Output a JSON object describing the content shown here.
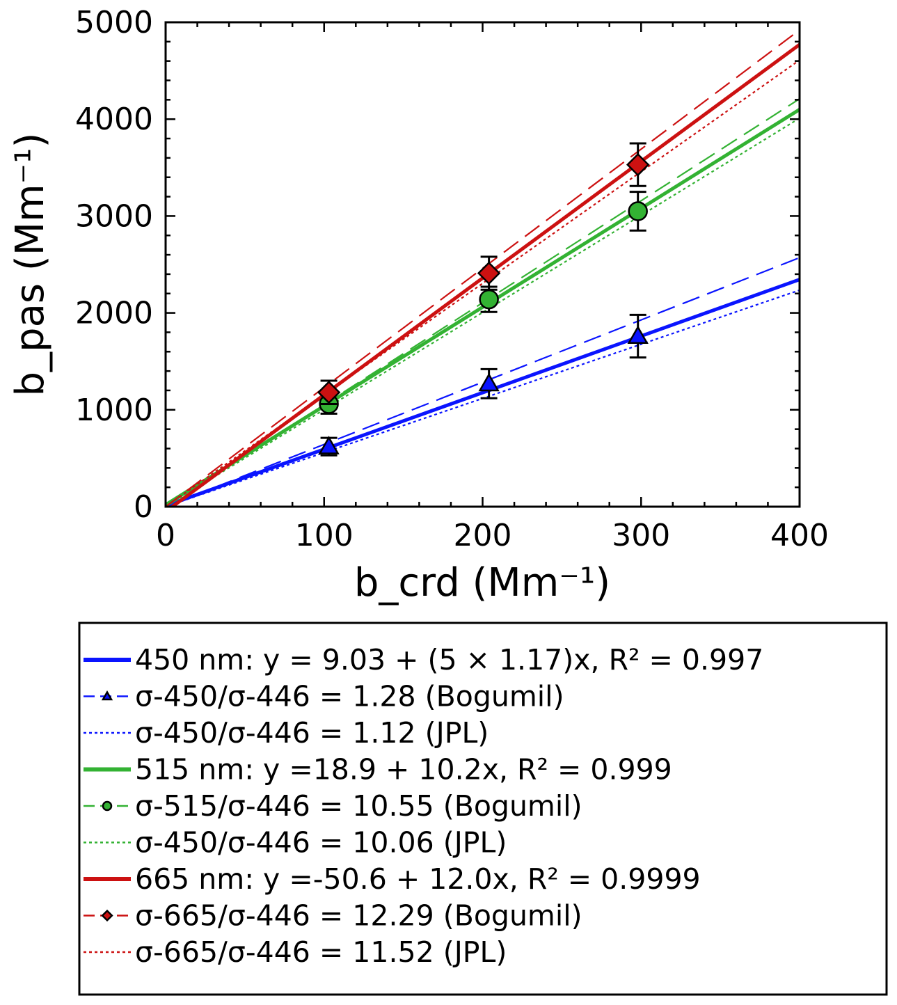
{
  "chart_data": {
    "type": "scatter",
    "xlabel": "b_crd (Mm⁻¹)",
    "ylabel": "b_pas (Mm⁻¹)",
    "xlim": [
      0,
      400
    ],
    "ylim": [
      0,
      5000
    ],
    "xticks": [
      "0",
      "100",
      "200",
      "300",
      "400"
    ],
    "yticks": [
      "0",
      "1000",
      "2000",
      "3000",
      "4000",
      "5000"
    ],
    "grid": false,
    "legend_position": "below plot",
    "colors": {
      "blue": "#0a14ff",
      "green": "#33b233",
      "red": "#cc1111"
    },
    "series": [
      {
        "name": "450 nm: y = 9.03 + (5 × 1.17)x, R² = 0.997",
        "color": "#0a14ff",
        "style": "solid",
        "line": {
          "x": [
            0,
            400
          ],
          "y": [
            9,
            2345
          ]
        }
      },
      {
        "name": "σ-450/σ-446 = 1.28 (Bogumil)",
        "color": "#0a14ff",
        "style": "dashed",
        "marker": "triangle",
        "line": {
          "x": [
            0,
            400
          ],
          "y": [
            0,
            2570
          ]
        },
        "points": {
          "x": [
            103,
            204,
            298
          ],
          "y": [
            620,
            1270,
            1760
          ],
          "err": [
            90,
            150,
            220
          ]
        }
      },
      {
        "name": "σ-450/σ-446 = 1.12 (JPL)",
        "color": "#0a14ff",
        "style": "dotted",
        "line": {
          "x": [
            0,
            400
          ],
          "y": [
            0,
            2235
          ]
        }
      },
      {
        "name": "515 nm: y =18.9 + 10.2x, R² = 0.999",
        "color": "#33b233",
        "style": "solid",
        "line": {
          "x": [
            0,
            400
          ],
          "y": [
            19,
            4100
          ]
        }
      },
      {
        "name": "σ-515/σ-446 = 10.55 (Bogumil)",
        "color": "#33b233",
        "style": "dashed",
        "marker": "circle",
        "line": {
          "x": [
            0,
            400
          ],
          "y": [
            0,
            4210
          ]
        },
        "points": {
          "x": [
            103,
            204,
            298
          ],
          "y": [
            1060,
            2140,
            3050
          ],
          "err": [
            100,
            130,
            200
          ]
        }
      },
      {
        "name": "σ-450/σ-446 = 10.06 (JPL)",
        "color": "#33b233",
        "style": "dotted",
        "line": {
          "x": [
            0,
            400
          ],
          "y": [
            0,
            4010
          ]
        }
      },
      {
        "name": "665 nm: y =-50.6 + 12.0x, R² = 0.9999",
        "color": "#cc1111",
        "style": "solid",
        "line": {
          "x": [
            0,
            400
          ],
          "y": [
            -51,
            4770
          ]
        }
      },
      {
        "name": "σ-665/σ-446 = 12.29 (Bogumil)",
        "color": "#cc1111",
        "style": "dashed",
        "marker": "diamond",
        "line": {
          "x": [
            0,
            400
          ],
          "y": [
            0,
            4920
          ]
        },
        "points": {
          "x": [
            103,
            204,
            298
          ],
          "y": [
            1180,
            2410,
            3530
          ],
          "err": [
            120,
            170,
            220
          ]
        }
      },
      {
        "name": "σ-665/σ-446 = 11.52 (JPL)",
        "color": "#cc1111",
        "style": "dotted",
        "line": {
          "x": [
            0,
            400
          ],
          "y": [
            0,
            4610
          ]
        }
      }
    ]
  }
}
